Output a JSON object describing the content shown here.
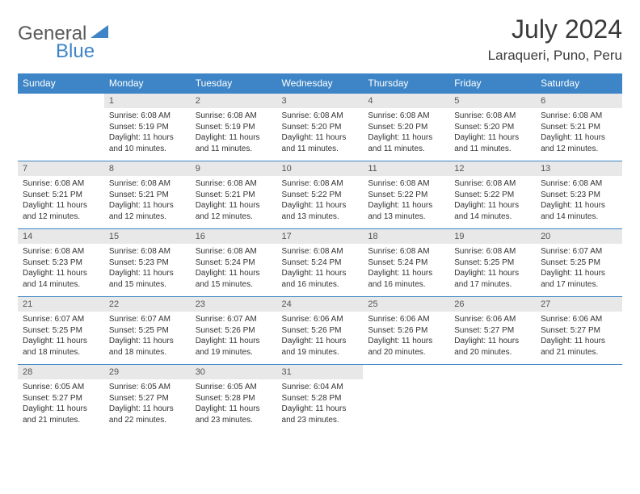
{
  "logo": {
    "word1": "General",
    "word2": "Blue",
    "text_color1": "#5a5a5a",
    "text_color2": "#3d85c6"
  },
  "title": "July 2024",
  "location": "Laraqueri, Puno, Peru",
  "colors": {
    "header_bg": "#3d85c6",
    "header_text": "#ffffff",
    "daynum_bg": "#e8e8e8",
    "daynum_text": "#555555",
    "body_text": "#333333",
    "rule": "#3d85c6"
  },
  "fonts": {
    "title_size": 32,
    "location_size": 17,
    "header_size": 12,
    "daynum_size": 11,
    "cell_size": 10
  },
  "day_headers": [
    "Sunday",
    "Monday",
    "Tuesday",
    "Wednesday",
    "Thursday",
    "Friday",
    "Saturday"
  ],
  "weeks": [
    [
      null,
      {
        "n": "1",
        "sunrise": "6:08 AM",
        "sunset": "5:19 PM",
        "daylight": "11 hours and 10 minutes."
      },
      {
        "n": "2",
        "sunrise": "6:08 AM",
        "sunset": "5:19 PM",
        "daylight": "11 hours and 11 minutes."
      },
      {
        "n": "3",
        "sunrise": "6:08 AM",
        "sunset": "5:20 PM",
        "daylight": "11 hours and 11 minutes."
      },
      {
        "n": "4",
        "sunrise": "6:08 AM",
        "sunset": "5:20 PM",
        "daylight": "11 hours and 11 minutes."
      },
      {
        "n": "5",
        "sunrise": "6:08 AM",
        "sunset": "5:20 PM",
        "daylight": "11 hours and 11 minutes."
      },
      {
        "n": "6",
        "sunrise": "6:08 AM",
        "sunset": "5:21 PM",
        "daylight": "11 hours and 12 minutes."
      }
    ],
    [
      {
        "n": "7",
        "sunrise": "6:08 AM",
        "sunset": "5:21 PM",
        "daylight": "11 hours and 12 minutes."
      },
      {
        "n": "8",
        "sunrise": "6:08 AM",
        "sunset": "5:21 PM",
        "daylight": "11 hours and 12 minutes."
      },
      {
        "n": "9",
        "sunrise": "6:08 AM",
        "sunset": "5:21 PM",
        "daylight": "11 hours and 12 minutes."
      },
      {
        "n": "10",
        "sunrise": "6:08 AM",
        "sunset": "5:22 PM",
        "daylight": "11 hours and 13 minutes."
      },
      {
        "n": "11",
        "sunrise": "6:08 AM",
        "sunset": "5:22 PM",
        "daylight": "11 hours and 13 minutes."
      },
      {
        "n": "12",
        "sunrise": "6:08 AM",
        "sunset": "5:22 PM",
        "daylight": "11 hours and 14 minutes."
      },
      {
        "n": "13",
        "sunrise": "6:08 AM",
        "sunset": "5:23 PM",
        "daylight": "11 hours and 14 minutes."
      }
    ],
    [
      {
        "n": "14",
        "sunrise": "6:08 AM",
        "sunset": "5:23 PM",
        "daylight": "11 hours and 14 minutes."
      },
      {
        "n": "15",
        "sunrise": "6:08 AM",
        "sunset": "5:23 PM",
        "daylight": "11 hours and 15 minutes."
      },
      {
        "n": "16",
        "sunrise": "6:08 AM",
        "sunset": "5:24 PM",
        "daylight": "11 hours and 15 minutes."
      },
      {
        "n": "17",
        "sunrise": "6:08 AM",
        "sunset": "5:24 PM",
        "daylight": "11 hours and 16 minutes."
      },
      {
        "n": "18",
        "sunrise": "6:08 AM",
        "sunset": "5:24 PM",
        "daylight": "11 hours and 16 minutes."
      },
      {
        "n": "19",
        "sunrise": "6:08 AM",
        "sunset": "5:25 PM",
        "daylight": "11 hours and 17 minutes."
      },
      {
        "n": "20",
        "sunrise": "6:07 AM",
        "sunset": "5:25 PM",
        "daylight": "11 hours and 17 minutes."
      }
    ],
    [
      {
        "n": "21",
        "sunrise": "6:07 AM",
        "sunset": "5:25 PM",
        "daylight": "11 hours and 18 minutes."
      },
      {
        "n": "22",
        "sunrise": "6:07 AM",
        "sunset": "5:25 PM",
        "daylight": "11 hours and 18 minutes."
      },
      {
        "n": "23",
        "sunrise": "6:07 AM",
        "sunset": "5:26 PM",
        "daylight": "11 hours and 19 minutes."
      },
      {
        "n": "24",
        "sunrise": "6:06 AM",
        "sunset": "5:26 PM",
        "daylight": "11 hours and 19 minutes."
      },
      {
        "n": "25",
        "sunrise": "6:06 AM",
        "sunset": "5:26 PM",
        "daylight": "11 hours and 20 minutes."
      },
      {
        "n": "26",
        "sunrise": "6:06 AM",
        "sunset": "5:27 PM",
        "daylight": "11 hours and 20 minutes."
      },
      {
        "n": "27",
        "sunrise": "6:06 AM",
        "sunset": "5:27 PM",
        "daylight": "11 hours and 21 minutes."
      }
    ],
    [
      {
        "n": "28",
        "sunrise": "6:05 AM",
        "sunset": "5:27 PM",
        "daylight": "11 hours and 21 minutes."
      },
      {
        "n": "29",
        "sunrise": "6:05 AM",
        "sunset": "5:27 PM",
        "daylight": "11 hours and 22 minutes."
      },
      {
        "n": "30",
        "sunrise": "6:05 AM",
        "sunset": "5:28 PM",
        "daylight": "11 hours and 23 minutes."
      },
      {
        "n": "31",
        "sunrise": "6:04 AM",
        "sunset": "5:28 PM",
        "daylight": "11 hours and 23 minutes."
      },
      null,
      null,
      null
    ]
  ],
  "labels": {
    "sunrise": "Sunrise:",
    "sunset": "Sunset:",
    "daylight": "Daylight:"
  }
}
